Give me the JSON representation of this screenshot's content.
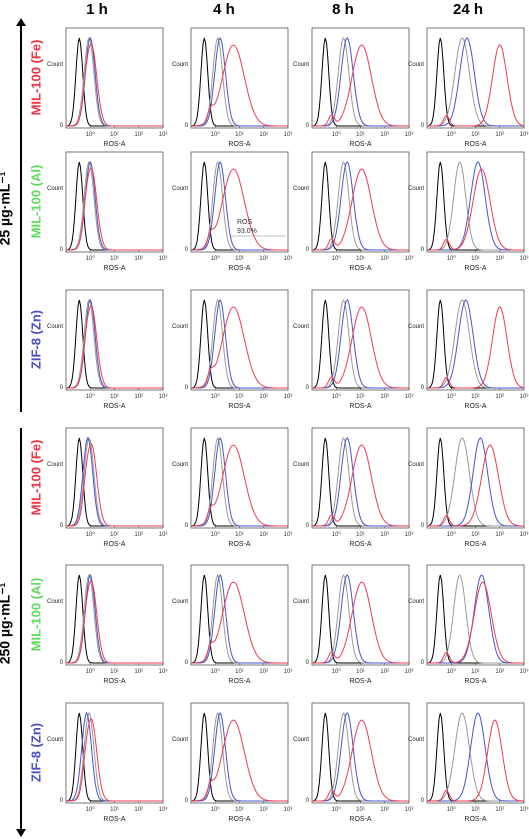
{
  "column_headers": [
    "1 h",
    "4 h",
    "8 h",
    "24 h"
  ],
  "group_labels": [
    "25 µg·mL⁻¹",
    "250 µg·mL⁻¹"
  ],
  "row_labels": [
    {
      "text": "MIL-100 (Fe)",
      "color": "#ee3342"
    },
    {
      "text": "MIL-100 (Al)",
      "color": "#5fdc5a"
    },
    {
      "text": "ZIF-8 (Zn)",
      "color": "#4b4fc4"
    },
    {
      "text": "MIL-100 (Fe)",
      "color": "#ee3342"
    },
    {
      "text": "MIL-100 (Al)",
      "color": "#5fdc5a"
    },
    {
      "text": "ZIF-8 (Zn)",
      "color": "#4b4fc4"
    }
  ],
  "panel_axis": {
    "xlabel": "ROS-A",
    "ylabel": "Count",
    "x_ticks": [
      "10⁰",
      "10¹",
      "10²",
      "10³"
    ],
    "x_scale": "log"
  },
  "annotation": {
    "panel": "row 2, 4 h",
    "lines": [
      "ROS",
      "93.0%"
    ]
  },
  "colors": {
    "control": "#000000",
    "gray": "#9a9a9a",
    "blue": "#4a54c6",
    "red": "#ee3b52"
  },
  "chart_data": {
    "type": "histogram-grid",
    "note": "Flow cytometry ROS histograms; each curve listed by peak position on log10 ROS-A axis",
    "x_unit": "log10 ROS-A",
    "panels": [
      {
        "row": 0,
        "col": 0,
        "curves": [
          {
            "series": "control",
            "peak": -0.45,
            "width": 0.14
          },
          {
            "series": "gray",
            "peak": -0.05,
            "width": 0.2
          },
          {
            "series": "blue",
            "peak": 0.0,
            "width": 0.2
          },
          {
            "series": "red",
            "peak": 0.05,
            "width": 0.22
          }
        ]
      },
      {
        "row": 0,
        "col": 1,
        "curves": [
          {
            "series": "control",
            "peak": -0.45,
            "width": 0.14
          },
          {
            "series": "gray",
            "peak": 0.1,
            "width": 0.2
          },
          {
            "series": "blue",
            "peak": 0.2,
            "width": 0.22
          },
          {
            "series": "red",
            "peak": 0.75,
            "width": 0.45
          }
        ]
      },
      {
        "row": 0,
        "col": 2,
        "curves": [
          {
            "series": "control",
            "peak": -0.45,
            "width": 0.14
          },
          {
            "series": "gray",
            "peak": 0.3,
            "width": 0.22
          },
          {
            "series": "blue",
            "peak": 0.45,
            "width": 0.25
          },
          {
            "series": "red",
            "peak": 1.05,
            "width": 0.4
          }
        ]
      },
      {
        "row": 0,
        "col": 3,
        "curves": [
          {
            "series": "control",
            "peak": -0.45,
            "width": 0.14
          },
          {
            "series": "gray",
            "peak": 0.45,
            "width": 0.3
          },
          {
            "series": "blue",
            "peak": 0.65,
            "width": 0.3
          },
          {
            "series": "red",
            "peak": 2.0,
            "width": 0.3
          }
        ]
      },
      {
        "row": 1,
        "col": 0,
        "curves": [
          {
            "series": "control",
            "peak": -0.45,
            "width": 0.14
          },
          {
            "series": "gray",
            "peak": -0.05,
            "width": 0.2
          },
          {
            "series": "blue",
            "peak": 0.0,
            "width": 0.2
          },
          {
            "series": "red",
            "peak": 0.05,
            "width": 0.22
          }
        ]
      },
      {
        "row": 1,
        "col": 1,
        "curves": [
          {
            "series": "control",
            "peak": -0.45,
            "width": 0.14
          },
          {
            "series": "gray",
            "peak": 0.1,
            "width": 0.2
          },
          {
            "series": "blue",
            "peak": 0.2,
            "width": 0.22
          },
          {
            "series": "red",
            "peak": 0.75,
            "width": 0.45
          }
        ]
      },
      {
        "row": 1,
        "col": 2,
        "curves": [
          {
            "series": "control",
            "peak": -0.45,
            "width": 0.14
          },
          {
            "series": "gray",
            "peak": 0.3,
            "width": 0.22
          },
          {
            "series": "blue",
            "peak": 0.45,
            "width": 0.25
          },
          {
            "series": "red",
            "peak": 1.05,
            "width": 0.4
          }
        ]
      },
      {
        "row": 1,
        "col": 3,
        "curves": [
          {
            "series": "control",
            "peak": -0.45,
            "width": 0.14
          },
          {
            "series": "gray",
            "peak": 0.35,
            "width": 0.25
          },
          {
            "series": "blue",
            "peak": 1.1,
            "width": 0.3
          },
          {
            "series": "red",
            "peak": 1.25,
            "width": 0.35
          }
        ]
      },
      {
        "row": 2,
        "col": 0,
        "curves": [
          {
            "series": "control",
            "peak": -0.45,
            "width": 0.14
          },
          {
            "series": "gray",
            "peak": -0.05,
            "width": 0.2
          },
          {
            "series": "blue",
            "peak": 0.0,
            "width": 0.2
          },
          {
            "series": "red",
            "peak": 0.05,
            "width": 0.22
          }
        ]
      },
      {
        "row": 2,
        "col": 1,
        "curves": [
          {
            "series": "control",
            "peak": -0.45,
            "width": 0.14
          },
          {
            "series": "gray",
            "peak": 0.1,
            "width": 0.2
          },
          {
            "series": "blue",
            "peak": 0.2,
            "width": 0.22
          },
          {
            "series": "red",
            "peak": 0.75,
            "width": 0.45
          }
        ]
      },
      {
        "row": 2,
        "col": 2,
        "curves": [
          {
            "series": "control",
            "peak": -0.45,
            "width": 0.14
          },
          {
            "series": "gray",
            "peak": 0.3,
            "width": 0.22
          },
          {
            "series": "blue",
            "peak": 0.45,
            "width": 0.25
          },
          {
            "series": "red",
            "peak": 1.05,
            "width": 0.4
          }
        ]
      },
      {
        "row": 2,
        "col": 3,
        "curves": [
          {
            "series": "control",
            "peak": -0.45,
            "width": 0.14
          },
          {
            "series": "gray",
            "peak": 0.45,
            "width": 0.3
          },
          {
            "series": "blue",
            "peak": 0.6,
            "width": 0.3
          },
          {
            "series": "red",
            "peak": 2.0,
            "width": 0.3
          }
        ]
      },
      {
        "row": 3,
        "col": 0,
        "curves": [
          {
            "series": "control",
            "peak": -0.45,
            "width": 0.14
          },
          {
            "series": "gray",
            "peak": -0.05,
            "width": 0.2
          },
          {
            "series": "blue",
            "peak": -0.1,
            "width": 0.2
          },
          {
            "series": "red",
            "peak": 0.05,
            "width": 0.22
          }
        ]
      },
      {
        "row": 3,
        "col": 1,
        "curves": [
          {
            "series": "control",
            "peak": -0.45,
            "width": 0.14
          },
          {
            "series": "gray",
            "peak": 0.1,
            "width": 0.2
          },
          {
            "series": "blue",
            "peak": 0.2,
            "width": 0.22
          },
          {
            "series": "red",
            "peak": 0.75,
            "width": 0.45
          }
        ]
      },
      {
        "row": 3,
        "col": 2,
        "curves": [
          {
            "series": "control",
            "peak": -0.45,
            "width": 0.14
          },
          {
            "series": "gray",
            "peak": 0.3,
            "width": 0.22
          },
          {
            "series": "blue",
            "peak": 0.45,
            "width": 0.25
          },
          {
            "series": "red",
            "peak": 1.05,
            "width": 0.4
          }
        ]
      },
      {
        "row": 3,
        "col": 3,
        "curves": [
          {
            "series": "control",
            "peak": -0.45,
            "width": 0.14
          },
          {
            "series": "gray",
            "peak": 0.45,
            "width": 0.3
          },
          {
            "series": "blue",
            "peak": 1.2,
            "width": 0.3
          },
          {
            "series": "red",
            "peak": 1.6,
            "width": 0.35
          }
        ]
      },
      {
        "row": 4,
        "col": 0,
        "curves": [
          {
            "series": "control",
            "peak": -0.45,
            "width": 0.14
          },
          {
            "series": "gray",
            "peak": -0.05,
            "width": 0.2
          },
          {
            "series": "blue",
            "peak": 0.0,
            "width": 0.2
          },
          {
            "series": "red",
            "peak": 0.05,
            "width": 0.22
          }
        ]
      },
      {
        "row": 4,
        "col": 1,
        "curves": [
          {
            "series": "control",
            "peak": -0.45,
            "width": 0.14
          },
          {
            "series": "gray",
            "peak": 0.1,
            "width": 0.2
          },
          {
            "series": "blue",
            "peak": 0.2,
            "width": 0.22
          },
          {
            "series": "red",
            "peak": 0.75,
            "width": 0.45
          }
        ]
      },
      {
        "row": 4,
        "col": 2,
        "curves": [
          {
            "series": "control",
            "peak": -0.45,
            "width": 0.14
          },
          {
            "series": "gray",
            "peak": 0.3,
            "width": 0.22
          },
          {
            "series": "blue",
            "peak": 0.45,
            "width": 0.25
          },
          {
            "series": "red",
            "peak": 1.05,
            "width": 0.4
          }
        ]
      },
      {
        "row": 4,
        "col": 3,
        "curves": [
          {
            "series": "control",
            "peak": -0.45,
            "width": 0.14
          },
          {
            "series": "gray",
            "peak": 0.35,
            "width": 0.25
          },
          {
            "series": "blue",
            "peak": 1.25,
            "width": 0.3
          },
          {
            "series": "red",
            "peak": 1.3,
            "width": 0.35
          }
        ]
      },
      {
        "row": 5,
        "col": 0,
        "curves": [
          {
            "series": "control",
            "peak": -0.45,
            "width": 0.14
          },
          {
            "series": "gray",
            "peak": -0.05,
            "width": 0.2
          },
          {
            "series": "blue",
            "peak": -0.15,
            "width": 0.2
          },
          {
            "series": "red",
            "peak": 0.05,
            "width": 0.22
          }
        ]
      },
      {
        "row": 5,
        "col": 1,
        "curves": [
          {
            "series": "control",
            "peak": -0.45,
            "width": 0.14
          },
          {
            "series": "gray",
            "peak": 0.1,
            "width": 0.2
          },
          {
            "series": "blue",
            "peak": 0.2,
            "width": 0.22
          },
          {
            "series": "red",
            "peak": 0.75,
            "width": 0.45
          }
        ]
      },
      {
        "row": 5,
        "col": 2,
        "curves": [
          {
            "series": "control",
            "peak": -0.45,
            "width": 0.14
          },
          {
            "series": "gray",
            "peak": 0.3,
            "width": 0.22
          },
          {
            "series": "blue",
            "peak": 0.45,
            "width": 0.25
          },
          {
            "series": "red",
            "peak": 1.05,
            "width": 0.4
          }
        ]
      },
      {
        "row": 5,
        "col": 3,
        "curves": [
          {
            "series": "control",
            "peak": -0.45,
            "width": 0.14
          },
          {
            "series": "gray",
            "peak": 0.45,
            "width": 0.3
          },
          {
            "series": "blue",
            "peak": 1.1,
            "width": 0.3
          },
          {
            "series": "red",
            "peak": 1.8,
            "width": 0.3
          }
        ]
      }
    ]
  }
}
